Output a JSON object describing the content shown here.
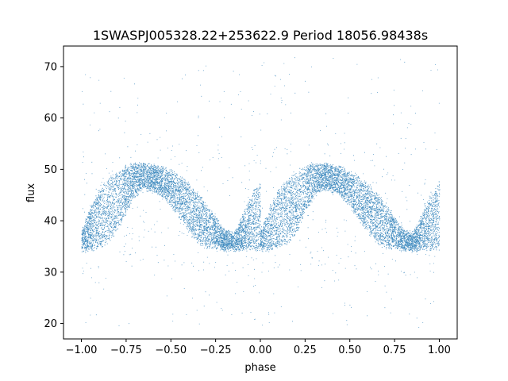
{
  "chart_data": {
    "type": "scatter",
    "title": "1SWASPJ005328.22+253622.9 Period 18056.98438s",
    "xlabel": "phase",
    "ylabel": "flux",
    "xlim": [
      -1.1,
      1.1
    ],
    "ylim": [
      17,
      74
    ],
    "xticks": [
      -1.0,
      -0.75,
      -0.5,
      -0.25,
      0.0,
      0.25,
      0.5,
      0.75,
      1.0
    ],
    "xtick_labels": [
      "−1.00",
      "−0.75",
      "−0.50",
      "−0.25",
      "0.00",
      "0.25",
      "0.50",
      "0.75",
      "1.00"
    ],
    "yticks": [
      20,
      30,
      40,
      50,
      60,
      70
    ],
    "ytick_labels": [
      "20",
      "30",
      "40",
      "50",
      "60",
      "70"
    ],
    "grid": false,
    "marker_color": "#1f77b4",
    "series": [
      {
        "period_in_phase": 1.0,
        "phase_range": [
          -1.0,
          1.0
        ],
        "envelope_upper": {
          "phase": [
            0.0,
            0.05,
            0.1,
            0.15,
            0.2,
            0.25,
            0.3,
            0.35,
            0.4,
            0.45,
            0.5,
            0.55,
            0.6,
            0.65,
            0.7,
            0.75,
            0.8,
            0.85,
            0.9,
            0.95,
            1.0
          ],
          "flux": [
            38,
            42.5,
            46,
            48,
            49.5,
            50.5,
            51,
            51,
            50.7,
            50.2,
            49.5,
            48.5,
            47,
            45,
            43,
            40.5,
            38,
            37.5,
            41,
            45,
            47.5
          ]
        },
        "envelope_lower": {
          "phase": [
            0.0,
            0.05,
            0.1,
            0.15,
            0.2,
            0.25,
            0.3,
            0.35,
            0.4,
            0.45,
            0.5,
            0.55,
            0.6,
            0.65,
            0.7,
            0.75,
            0.8,
            0.85,
            0.9,
            0.95,
            1.0
          ],
          "flux": [
            34.5,
            34.5,
            35,
            36,
            38,
            42,
            45,
            46.5,
            46,
            45,
            43,
            40.5,
            38,
            36,
            35,
            35,
            34.5,
            34.5,
            34.5,
            34.5,
            34.5
          ]
        },
        "outlier_range": [
          19,
          72
        ]
      }
    ]
  }
}
